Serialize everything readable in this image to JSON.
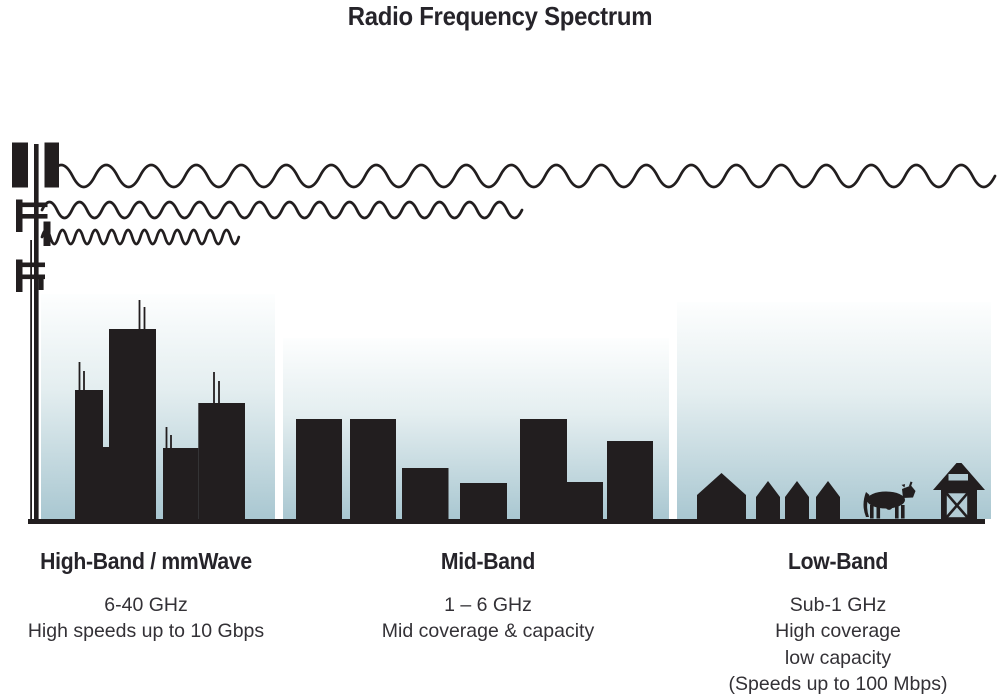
{
  "title": "Radio Frequency Spectrum",
  "colors": {
    "ink": "#221e1f",
    "text": "#333136",
    "heading": "#26242a",
    "sky_top": "#fdfefe",
    "sky_mid": "#e4eef0",
    "sky_bottom": "#a9c7d1",
    "barn_door": "#b3ccd4",
    "background": "#ffffff"
  },
  "bands": [
    {
      "name": "High-Band / mmWave",
      "lines": [
        "6-40 GHz",
        "High speeds up to 10 Gbps"
      ]
    },
    {
      "name": "Mid-Band",
      "lines": [
        "1 – 6 GHz",
        "Mid coverage & capacity"
      ]
    },
    {
      "name": "Low-Band",
      "lines": [
        "Sub-1 GHz",
        "High coverage",
        "low capacity",
        "(Speeds up to 100 Mbps)"
      ]
    }
  ]
}
